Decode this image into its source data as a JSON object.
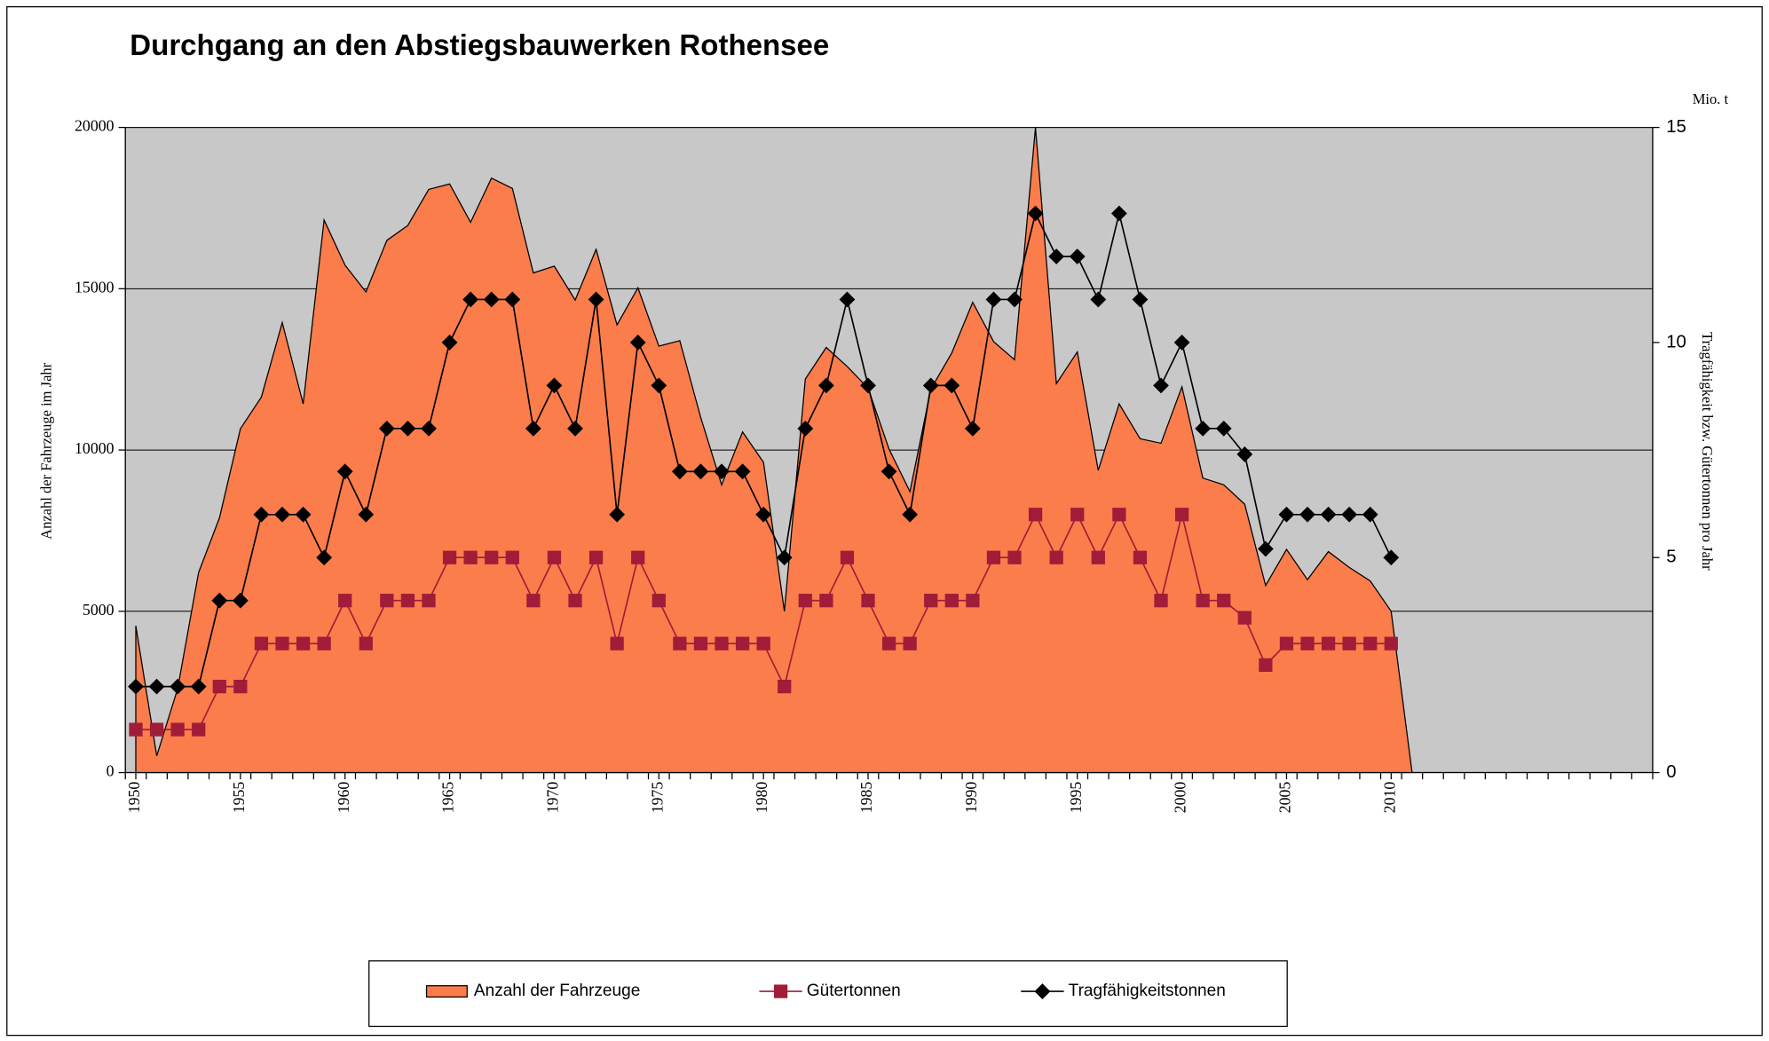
{
  "chart_data": {
    "type": "area-line",
    "title": "Durchgang an den Abstiegsbauwerken Rothensee",
    "y_label": "Anzahl der Fahrzeuge im Jahr",
    "y2_label": "Tragfähigkeit bzw. Gütertonnen pro Jahr",
    "y2_unit": "Mio. t",
    "x": [
      1950,
      1951,
      1952,
      1953,
      1954,
      1955,
      1956,
      1957,
      1958,
      1959,
      1960,
      1961,
      1962,
      1963,
      1964,
      1965,
      1966,
      1967,
      1968,
      1969,
      1970,
      1971,
      1972,
      1973,
      1974,
      1975,
      1976,
      1977,
      1978,
      1979,
      1980,
      1981,
      1982,
      1983,
      1984,
      1985,
      1986,
      1987,
      1988,
      1989,
      1990,
      1991,
      1992,
      1993,
      1994,
      1995,
      1996,
      1997,
      1998,
      1999,
      2000,
      2001,
      2002,
      2003,
      2004,
      2005,
      2006,
      2007,
      2008,
      2009,
      2010,
      2011
    ],
    "series": [
      {
        "name": "Anzahl der Fahrzeuge",
        "type": "area",
        "color": "#fa7d4b",
        "axis": "y",
        "values": [
          4550,
          520,
          2600,
          6200,
          7900,
          10660,
          11640,
          13950,
          11430,
          17130,
          15730,
          14900,
          16500,
          16960,
          18080,
          18250,
          17060,
          18430,
          18110,
          15490,
          15700,
          14650,
          16220,
          13880,
          15030,
          13220,
          13390,
          11010,
          8920,
          10560,
          9620,
          5000,
          12200,
          13180,
          12590,
          11920,
          10030,
          8710,
          11890,
          13010,
          14580,
          13360,
          12800,
          20000,
          12060,
          13040,
          9370,
          11430,
          10350,
          10210,
          11960,
          9130,
          8920,
          8320,
          5800,
          6920,
          5980,
          6850,
          6360,
          5940,
          5000,
          0
        ]
      },
      {
        "name": "Gütertonnen",
        "type": "line",
        "marker": "square",
        "color": "#a01c38",
        "axis": "y2",
        "values": [
          1,
          1,
          1,
          1,
          2,
          2,
          3,
          3,
          3,
          3,
          4,
          3,
          4,
          4,
          4,
          5,
          5,
          5,
          5,
          4,
          5,
          4,
          5,
          3,
          5,
          4,
          3,
          3,
          3,
          3,
          3,
          2,
          4,
          4,
          5,
          4,
          3,
          3,
          4,
          4,
          4,
          5,
          5,
          6,
          5,
          6,
          5,
          6,
          5,
          4,
          6,
          4,
          4,
          3.6,
          2.5,
          3,
          3,
          3,
          3,
          3,
          3,
          null
        ]
      },
      {
        "name": "Tragfähigkeitstonnen",
        "type": "line",
        "marker": "diamond",
        "color": "#000000",
        "axis": "y2",
        "values": [
          2,
          2,
          2,
          2,
          4,
          4,
          6,
          6,
          6,
          5,
          7,
          6,
          8,
          8,
          8,
          10,
          11,
          11,
          11,
          8,
          9,
          8,
          11,
          6,
          10,
          9,
          7,
          7,
          7,
          7,
          6,
          5,
          8,
          9,
          11,
          9,
          7,
          6,
          9,
          9,
          8,
          11,
          11,
          13,
          12,
          12,
          11,
          13,
          11,
          9,
          10,
          8,
          8,
          7.4,
          5.2,
          6,
          6,
          6,
          6,
          6,
          5,
          null
        ]
      }
    ],
    "xlim": [
      1949.5,
      2022.5
    ],
    "xticks": [
      1950,
      1955,
      1960,
      1965,
      1970,
      1975,
      1980,
      1985,
      1990,
      1995,
      2000,
      2005,
      2010
    ],
    "ylim": [
      0,
      20000
    ],
    "yticks": [
      0,
      5000,
      10000,
      15000,
      20000
    ],
    "y2lim": [
      0,
      15
    ],
    "y2ticks": [
      0,
      5,
      10,
      15
    ],
    "grid": true,
    "legend": "bottom",
    "plot_background": "#c8c8c8"
  }
}
